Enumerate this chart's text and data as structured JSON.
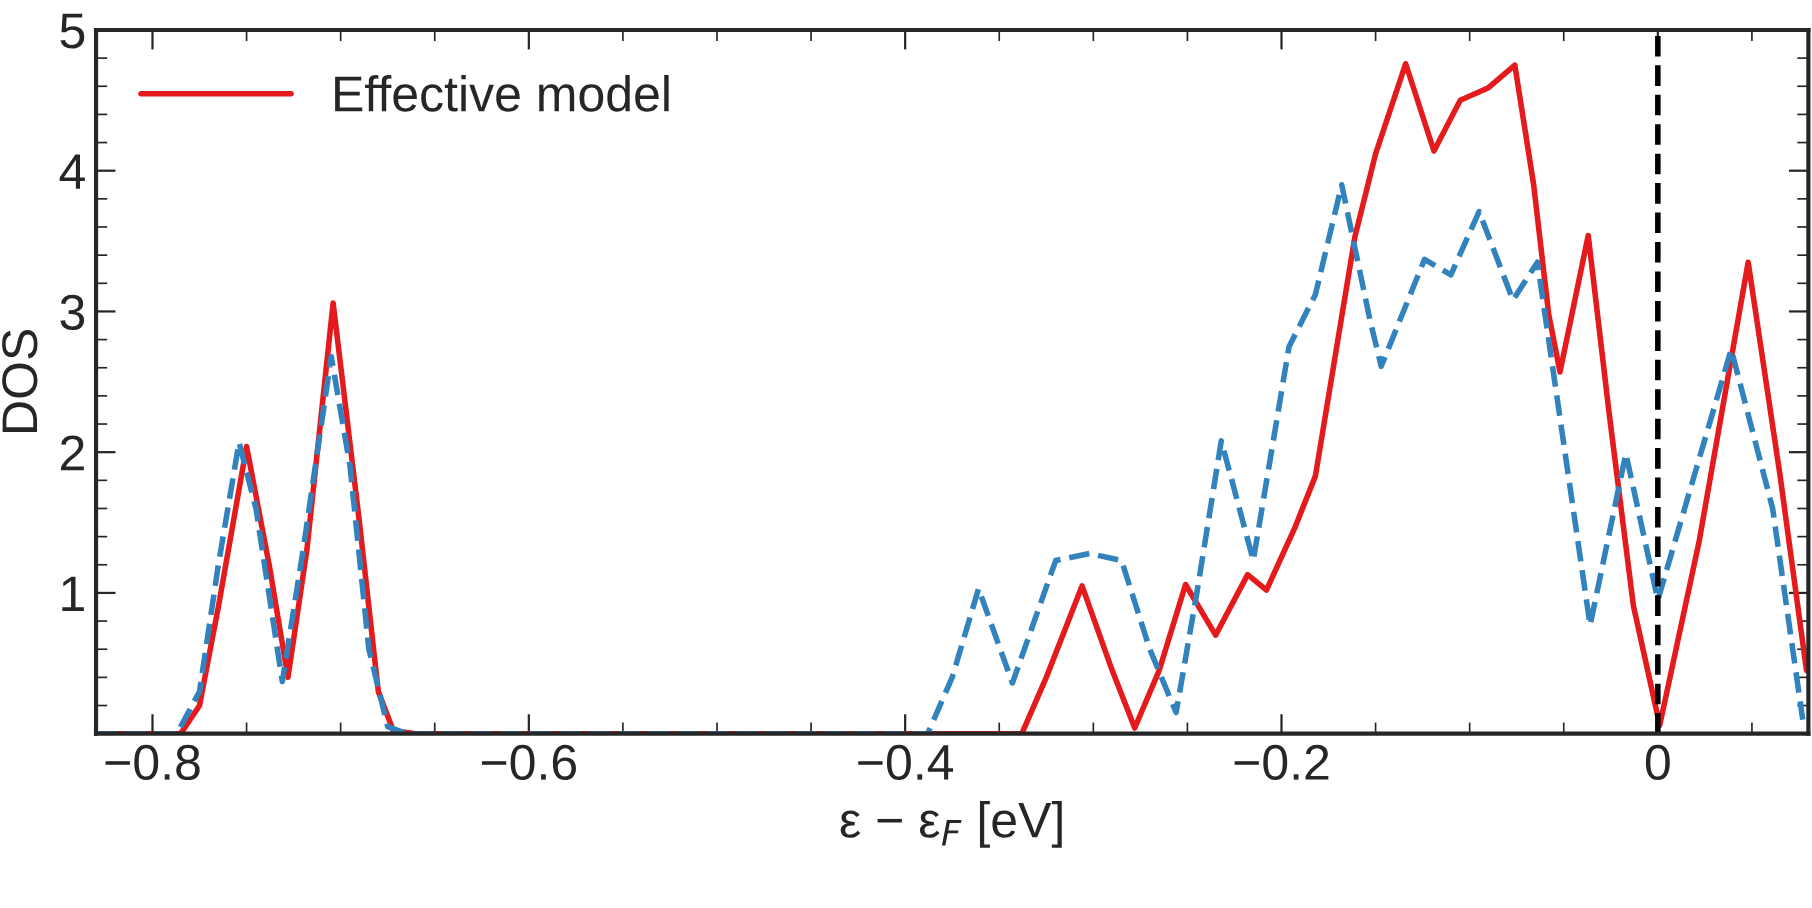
{
  "chart_data": {
    "type": "line",
    "xlabel": "ε − ε$_{F}$ [eV]",
    "ylabel": "DOS",
    "xlim": [
      -0.83,
      0.08
    ],
    "ylim": [
      0,
      5
    ],
    "xticks": [
      {
        "value": -0.8,
        "label": "−0.8"
      },
      {
        "value": -0.6,
        "label": "−0.6"
      },
      {
        "value": -0.4,
        "label": "−0.4"
      },
      {
        "value": -0.2,
        "label": "−0.2"
      },
      0
    ],
    "yticks": [
      1,
      2,
      3,
      4,
      5
    ],
    "grid": false,
    "legend": "top left",
    "series": [
      {
        "name": "Effective model",
        "color": "#e41a1c",
        "line_style": "solid",
        "x": [
          -0.83,
          -0.785,
          -0.775,
          -0.765,
          -0.75,
          -0.738,
          -0.728,
          -0.718,
          -0.704,
          -0.69,
          -0.68,
          -0.672,
          -0.66,
          -0.338,
          -0.325,
          -0.306,
          -0.29,
          -0.278,
          -0.265,
          -0.251,
          -0.235,
          -0.218,
          -0.208,
          -0.193,
          -0.182,
          -0.161,
          -0.15,
          -0.134,
          -0.119,
          -0.105,
          -0.09,
          -0.076,
          -0.066,
          -0.058,
          -0.052,
          -0.037,
          -0.026,
          -0.013,
          0.001,
          0.022,
          0.048,
          0.065,
          0.079
        ],
        "values": [
          0,
          0,
          0.2,
          0.9,
          2.04,
          1.2,
          0.4,
          1.3,
          3.06,
          1.5,
          0.3,
          0.02,
          0,
          0,
          0.4,
          1.05,
          0.45,
          0.04,
          0.45,
          1.06,
          0.7,
          1.13,
          1.02,
          1.46,
          1.83,
          3.53,
          4.12,
          4.76,
          4.14,
          4.5,
          4.59,
          4.75,
          3.9,
          2.98,
          2.57,
          3.54,
          2.29,
          0.91,
          0.06,
          1.37,
          3.35,
          1.83,
          0.45
        ]
      },
      {
        "color": "#3182bd",
        "line_style": "dashed",
        "x": [
          -0.83,
          -0.787,
          -0.775,
          -0.765,
          -0.754,
          -0.745,
          -0.731,
          -0.72,
          -0.705,
          -0.695,
          -0.685,
          -0.675,
          -0.665,
          -0.388,
          -0.375,
          -0.361,
          -0.343,
          -0.32,
          -0.302,
          -0.285,
          -0.27,
          -0.256,
          -0.245,
          -0.232,
          -0.215,
          -0.196,
          -0.182,
          -0.168,
          -0.153,
          -0.147,
          -0.124,
          -0.11,
          -0.095,
          -0.077,
          -0.064,
          -0.055,
          -0.036,
          -0.017,
          0.0,
          0.039,
          0.061,
          0.077
        ],
        "values": [
          0,
          0,
          0.3,
          1.2,
          2.07,
          1.6,
          0.37,
          1.3,
          2.68,
          1.9,
          0.6,
          0.05,
          0,
          0,
          0.4,
          1.03,
          0.36,
          1.23,
          1.28,
          1.23,
          0.6,
          0.15,
          1.0,
          2.08,
          1.23,
          2.75,
          3.12,
          3.9,
          2.94,
          2.61,
          3.37,
          3.26,
          3.71,
          3.08,
          3.35,
          2.52,
          0.77,
          1.99,
          0.95,
          2.73,
          1.6,
          0.1
        ]
      }
    ],
    "ref_lines": [
      {
        "axis": "x",
        "value": 0,
        "color": "#000000",
        "line_style": "dashed"
      }
    ]
  }
}
